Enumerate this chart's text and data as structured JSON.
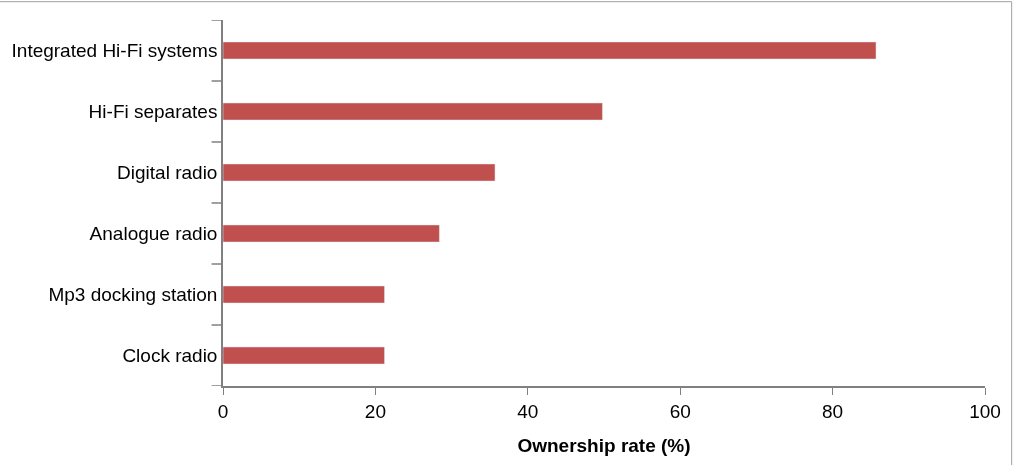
{
  "chart_data": {
    "type": "bar",
    "orientation": "horizontal",
    "xlabel": "Ownership rate (%)",
    "categories": [
      "Integrated Hi-Fi systems",
      "Hi-Fi separates",
      "Digital radio",
      "Analogue radio",
      "Mp3 docking station",
      "Clock radio"
    ],
    "values": [
      85.7,
      49.8,
      35.7,
      28.4,
      21.2,
      21.2
    ],
    "color": "#c0504d",
    "xlim": [
      0,
      100
    ],
    "xticks": [
      0,
      20,
      40,
      60,
      80,
      100
    ]
  }
}
